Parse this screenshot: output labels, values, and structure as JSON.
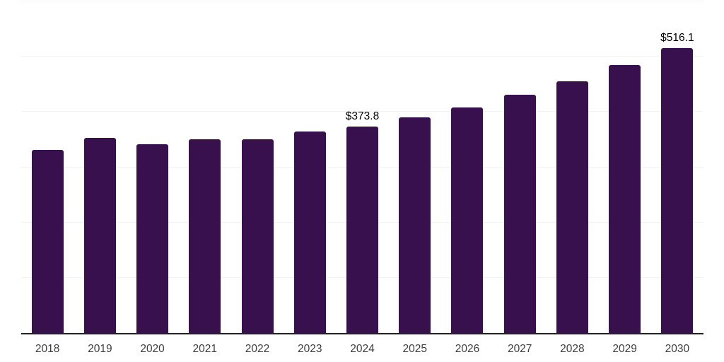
{
  "chart_data": {
    "type": "bar",
    "title": "",
    "xlabel": "",
    "ylabel": "",
    "categories": [
      "2018",
      "2019",
      "2020",
      "2021",
      "2022",
      "2023",
      "2024",
      "2025",
      "2026",
      "2027",
      "2028",
      "2029",
      "2030"
    ],
    "values": [
      332,
      353,
      342,
      350,
      351,
      364,
      373.8,
      390,
      408,
      431,
      455,
      485,
      516.1
    ],
    "value_labels": [
      "",
      "",
      "",
      "",
      "",
      "",
      "$373.8",
      "",
      "",
      "",
      "",
      "",
      "$516.1"
    ],
    "labeled_points": [
      {
        "category": "2024",
        "label": "$373.8",
        "value": 373.8
      },
      {
        "category": "2030",
        "label": "$516.1",
        "value": 516.1
      }
    ],
    "ylim": [
      0,
      600
    ],
    "gridline_values": [
      100,
      200,
      300,
      400,
      500,
      600
    ],
    "grid": "horizontal",
    "legend_position": "none",
    "colors": {
      "bar": "#38104E",
      "gridline": "#f3f3f3",
      "axis_line": "#222222",
      "value_label": "#000000",
      "tick_label": "#3d3d3d",
      "background": "#ffffff"
    }
  }
}
